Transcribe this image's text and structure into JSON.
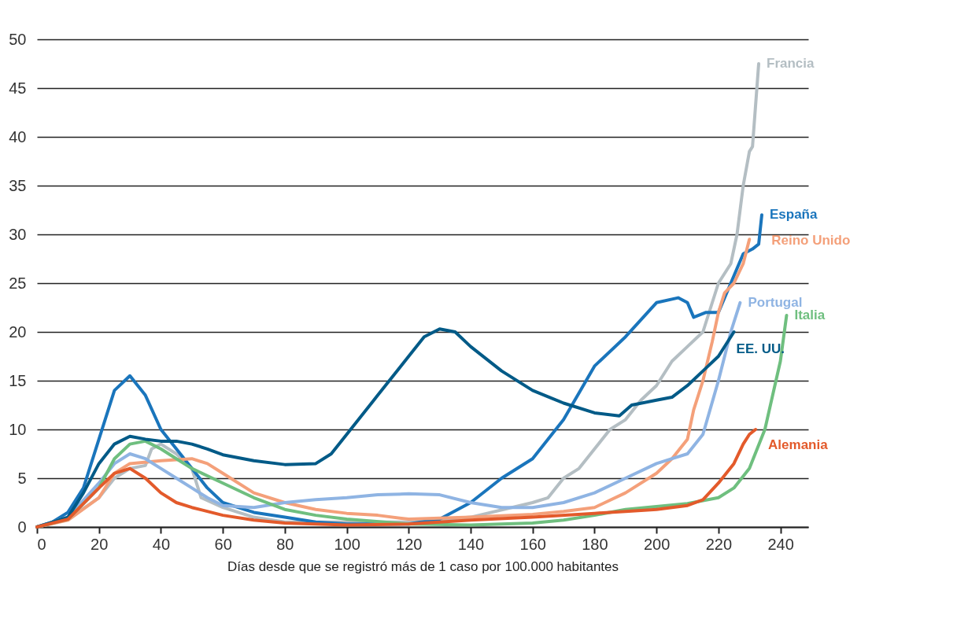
{
  "chart_data": {
    "type": "line",
    "xlabel": "Días desde que se registró más de 1 caso por 100.000 habitantes",
    "xlim": [
      0,
      249
    ],
    "xticks": [
      0,
      20,
      40,
      60,
      80,
      100,
      120,
      140,
      160,
      180,
      200,
      220,
      240
    ],
    "ylim": [
      0,
      50
    ],
    "yticks": [
      0,
      5,
      10,
      15,
      20,
      25,
      30,
      35,
      40,
      45,
      50
    ],
    "grid": "y",
    "legend": false,
    "line_style": "solid",
    "marker": "none",
    "series": [
      {
        "name": "Francia",
        "color": "#b4bec3",
        "x": [
          0,
          10,
          20,
          25,
          30,
          35,
          37,
          40,
          45,
          50,
          53,
          60,
          70,
          80,
          100,
          120,
          140,
          160,
          165,
          170,
          175,
          180,
          185,
          190,
          195,
          200,
          205,
          210,
          215,
          220,
          224,
          226,
          228,
          230,
          231,
          233
        ],
        "values": [
          0,
          0.8,
          3,
          5,
          6,
          6.3,
          8,
          8.5,
          7.5,
          6,
          3,
          2,
          1,
          0.5,
          0.5,
          0.5,
          1,
          2.5,
          3,
          5,
          6,
          8,
          10,
          11,
          13,
          14.5,
          17,
          18.5,
          20,
          25,
          27,
          30,
          35,
          38.5,
          39,
          47.5
        ]
      },
      {
        "name": "España",
        "color": "#1a75bc",
        "x": [
          0,
          5,
          10,
          15,
          20,
          25,
          30,
          35,
          40,
          45,
          50,
          55,
          60,
          70,
          80,
          90,
          100,
          120,
          130,
          140,
          150,
          160,
          170,
          180,
          190,
          200,
          207,
          210,
          212,
          216,
          220,
          224,
          228,
          231,
          233,
          234
        ],
        "values": [
          0,
          0.5,
          1.5,
          4,
          9,
          14,
          15.5,
          13.5,
          10,
          8,
          6,
          4,
          2.5,
          1.5,
          1,
          0.5,
          0.3,
          0.3,
          0.8,
          2.5,
          5,
          7,
          11,
          16.5,
          19.5,
          23,
          23.5,
          23,
          21.5,
          22,
          22,
          25,
          28,
          28.5,
          29,
          32
        ]
      },
      {
        "name": "Reino Unido",
        "color": "#f4a07a",
        "x": [
          0,
          10,
          20,
          25,
          30,
          40,
          50,
          55,
          60,
          70,
          80,
          90,
          100,
          110,
          120,
          140,
          160,
          170,
          180,
          190,
          200,
          205,
          210,
          212,
          215,
          218,
          220,
          222,
          225,
          228,
          230
        ],
        "values": [
          0,
          0.7,
          3,
          5.5,
          6.5,
          6.8,
          7,
          6.5,
          5.5,
          3.5,
          2.5,
          1.8,
          1.4,
          1.2,
          0.8,
          1,
          1.3,
          1.6,
          2,
          3.5,
          5.5,
          7,
          9,
          12,
          15,
          19,
          22,
          24,
          25,
          27,
          29.5
        ]
      },
      {
        "name": "Portugal",
        "color": "#8fb4e3",
        "x": [
          0,
          10,
          20,
          25,
          30,
          35,
          40,
          45,
          50,
          55,
          60,
          70,
          80,
          90,
          100,
          110,
          120,
          130,
          140,
          150,
          160,
          170,
          180,
          190,
          200,
          205,
          210,
          215,
          220,
          224,
          227
        ],
        "values": [
          0,
          1,
          4.5,
          6.5,
          7.5,
          7,
          6,
          5,
          4,
          3,
          2.2,
          2,
          2.5,
          2.8,
          3,
          3.3,
          3.4,
          3.3,
          2.5,
          2,
          2,
          2.5,
          3.5,
          5,
          6.5,
          7,
          7.5,
          9.5,
          15,
          20,
          23
        ]
      },
      {
        "name": "Italia",
        "color": "#6fbf7f",
        "x": [
          0,
          10,
          20,
          25,
          30,
          35,
          40,
          45,
          50,
          60,
          70,
          80,
          90,
          100,
          120,
          140,
          160,
          170,
          180,
          190,
          200,
          210,
          220,
          225,
          230,
          235,
          240,
          242
        ],
        "values": [
          0,
          0.8,
          4,
          7,
          8.5,
          8.8,
          8,
          7,
          6,
          4.5,
          3,
          1.8,
          1.2,
          0.8,
          0.3,
          0.2,
          0.4,
          0.7,
          1.2,
          1.8,
          2.1,
          2.4,
          3,
          4,
          6,
          10,
          17,
          21.7
        ]
      },
      {
        "name": "EE. UU.",
        "color": "#005a87",
        "x": [
          0,
          10,
          15,
          20,
          25,
          30,
          35,
          40,
          45,
          50,
          55,
          60,
          70,
          80,
          90,
          95,
          100,
          110,
          120,
          125,
          130,
          135,
          140,
          150,
          160,
          170,
          180,
          188,
          192,
          200,
          205,
          210,
          215,
          220,
          225
        ],
        "values": [
          0,
          1,
          3.5,
          6.5,
          8.5,
          9.3,
          9,
          8.8,
          8.8,
          8.5,
          8,
          7.4,
          6.8,
          6.4,
          6.5,
          7.5,
          9.5,
          13.5,
          17.5,
          19.5,
          20.3,
          20,
          18.5,
          16,
          14,
          12.7,
          11.7,
          11.4,
          12.5,
          13,
          13.3,
          14.5,
          16,
          17.5,
          20
        ]
      },
      {
        "name": "Alemania",
        "color": "#e35a2b",
        "x": [
          0,
          10,
          20,
          25,
          30,
          35,
          40,
          45,
          50,
          60,
          70,
          80,
          100,
          120,
          140,
          160,
          180,
          190,
          200,
          210,
          215,
          220,
          225,
          228,
          230,
          232
        ],
        "values": [
          0,
          0.8,
          4,
          5.5,
          6,
          5,
          3.5,
          2.5,
          2,
          1.2,
          0.7,
          0.4,
          0.2,
          0.3,
          0.7,
          1,
          1.4,
          1.6,
          1.8,
          2.2,
          2.8,
          4.5,
          6.5,
          8.5,
          9.5,
          10
        ]
      }
    ]
  }
}
